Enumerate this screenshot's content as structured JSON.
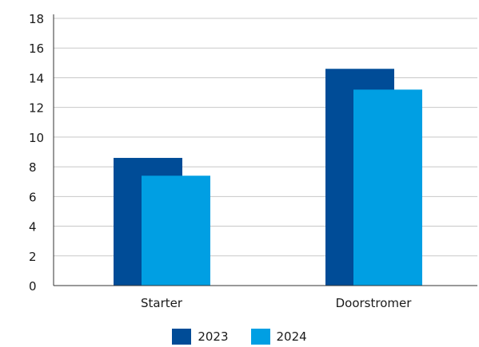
{
  "chart_data": {
    "type": "bar",
    "title": "",
    "xlabel": "",
    "ylabel": "",
    "categories": [
      "Starter",
      "Doorstromer"
    ],
    "series": [
      {
        "name": "2023",
        "values": [
          8.6,
          14.6
        ],
        "color": "#004c97"
      },
      {
        "name": "2024",
        "values": [
          7.4,
          13.2
        ],
        "color": "#009fe3"
      }
    ],
    "ylim": [
      0,
      18
    ],
    "yticks": [
      0,
      2,
      4,
      6,
      8,
      10,
      12,
      14,
      16,
      18
    ],
    "grid": true,
    "legend_position": "bottom"
  }
}
